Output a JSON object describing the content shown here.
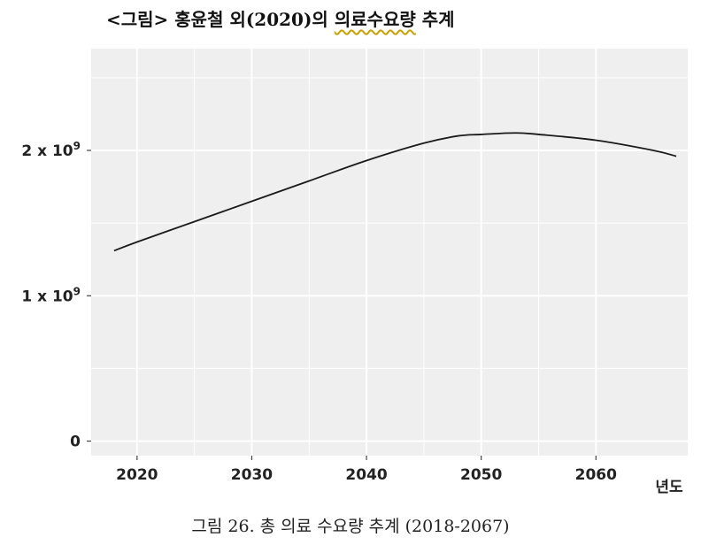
{
  "header": {
    "prefix": "<그림> 홍윤철 외(2020)의",
    "underlined": "의료수요량",
    "suffix": "추계"
  },
  "caption": "그림 26. 총 의료 수요량 추계 (2018-2067)",
  "chart_data": {
    "type": "line",
    "title": "",
    "xlabel": "년도",
    "ylabel": "",
    "xlim": [
      2016,
      2068
    ],
    "ylim": [
      -0.1,
      2.7
    ],
    "x_ticks": [
      2020,
      2030,
      2040,
      2050,
      2060
    ],
    "x_tick_labels": [
      "2020",
      "2030",
      "2040",
      "2050",
      "2060"
    ],
    "y_ticks": [
      0,
      1,
      2
    ],
    "y_tick_labels": [
      {
        "base": "0",
        "exp": ""
      },
      {
        "base": "1 x 10",
        "exp": "9"
      },
      {
        "base": "2 x 10",
        "exp": "9"
      }
    ],
    "grid": true,
    "series": [
      {
        "name": "",
        "x": [
          2018,
          2020,
          2025,
          2030,
          2035,
          2040,
          2045,
          2048,
          2050,
          2053,
          2055,
          2060,
          2065,
          2067
        ],
        "y": [
          1.31,
          1.37,
          1.51,
          1.65,
          1.79,
          1.93,
          2.05,
          2.1,
          2.11,
          2.12,
          2.11,
          2.07,
          2.0,
          1.96
        ]
      }
    ],
    "colors": {
      "panel": "#efefef",
      "grid": "#ffffff",
      "line": "#1a1a1a",
      "text": "#222222"
    }
  }
}
